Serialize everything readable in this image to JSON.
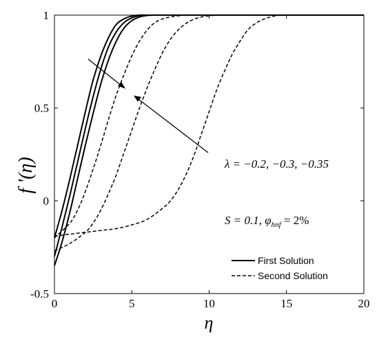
{
  "chart_data": {
    "type": "line",
    "xlabel": "η",
    "ylabel": "f '(η)",
    "xlim": [
      0,
      20
    ],
    "ylim": [
      -0.5,
      1
    ],
    "xticks": [
      0,
      5,
      10,
      15,
      20
    ],
    "yticks": [
      -0.5,
      0,
      0.5,
      1
    ],
    "grid": false,
    "legend_position": "bottom-right",
    "legend": [
      {
        "label": "First Solution",
        "style": "solid"
      },
      {
        "label": "Second Solution",
        "style": "dashed"
      }
    ],
    "annotations": {
      "lambda_text": "λ = −0.2, −0.3, −0.35",
      "param_text": "S = 0.1, φ",
      "param_sub": "hnf",
      "param_value": " = 2%"
    },
    "series": [
      {
        "name": "First Solution",
        "lambda": -0.2,
        "style": "solid",
        "x": [
          0,
          0.5,
          1,
          1.5,
          2,
          2.5,
          3,
          3.5,
          4,
          4.5,
          5,
          5.5,
          6,
          7,
          8,
          20
        ],
        "y": [
          -0.2,
          -0.05,
          0.12,
          0.3,
          0.48,
          0.65,
          0.78,
          0.88,
          0.95,
          0.98,
          0.995,
          1.0,
          1.0,
          1.0,
          1.0,
          1.0
        ]
      },
      {
        "name": "First Solution",
        "lambda": -0.3,
        "style": "solid",
        "x": [
          0,
          0.5,
          1,
          1.5,
          2,
          2.5,
          3,
          3.5,
          4,
          4.5,
          5,
          5.5,
          6,
          7,
          8,
          20
        ],
        "y": [
          -0.3,
          -0.14,
          0.03,
          0.21,
          0.39,
          0.56,
          0.71,
          0.83,
          0.91,
          0.96,
          0.985,
          0.997,
          1.0,
          1.0,
          1.0,
          1.0
        ]
      },
      {
        "name": "First Solution",
        "lambda": -0.35,
        "style": "solid",
        "x": [
          0,
          0.5,
          1,
          1.5,
          2,
          2.5,
          3,
          3.5,
          4,
          4.5,
          5,
          5.5,
          6,
          6.5,
          7,
          8,
          20
        ],
        "y": [
          -0.35,
          -0.22,
          -0.06,
          0.12,
          0.3,
          0.47,
          0.63,
          0.76,
          0.86,
          0.93,
          0.97,
          0.99,
          0.998,
          1.0,
          1.0,
          1.0,
          1.0
        ]
      },
      {
        "name": "Second Solution",
        "lambda": -0.2,
        "style": "dashed",
        "x": [
          0,
          1,
          1.5,
          2,
          2.5,
          3,
          3.5,
          4,
          4.5,
          5,
          5.5,
          6,
          6.5,
          7,
          7.5,
          8,
          8.5,
          9,
          20
        ],
        "y": [
          -0.2,
          -0.12,
          -0.05,
          0.05,
          0.17,
          0.3,
          0.44,
          0.57,
          0.68,
          0.78,
          0.86,
          0.92,
          0.96,
          0.98,
          0.99,
          0.996,
          1.0,
          1.0,
          1.0
        ]
      },
      {
        "name": "Second Solution",
        "lambda": -0.3,
        "style": "dashed",
        "x": [
          0,
          1,
          2,
          2.5,
          3,
          3.5,
          4,
          4.5,
          5,
          5.5,
          6,
          6.5,
          7,
          7.5,
          8,
          8.5,
          9,
          9.5,
          10,
          10.5,
          11,
          20
        ],
        "y": [
          -0.27,
          -0.23,
          -0.17,
          -0.12,
          -0.05,
          0.04,
          0.14,
          0.26,
          0.38,
          0.5,
          0.61,
          0.71,
          0.8,
          0.87,
          0.92,
          0.955,
          0.977,
          0.99,
          0.996,
          1.0,
          1.0,
          1.0
        ]
      },
      {
        "name": "Second Solution",
        "lambda": -0.35,
        "style": "dashed",
        "x": [
          0,
          1,
          2,
          3,
          4,
          5,
          6,
          7,
          7.5,
          8,
          8.5,
          9,
          9.5,
          10,
          10.5,
          11,
          11.5,
          12,
          12.5,
          13,
          13.5,
          14,
          15,
          20
        ],
        "y": [
          -0.19,
          -0.18,
          -0.17,
          -0.16,
          -0.15,
          -0.13,
          -0.1,
          -0.04,
          0.0,
          0.06,
          0.14,
          0.24,
          0.36,
          0.48,
          0.6,
          0.7,
          0.79,
          0.86,
          0.92,
          0.955,
          0.977,
          0.99,
          1.0,
          1.0
        ]
      }
    ]
  }
}
